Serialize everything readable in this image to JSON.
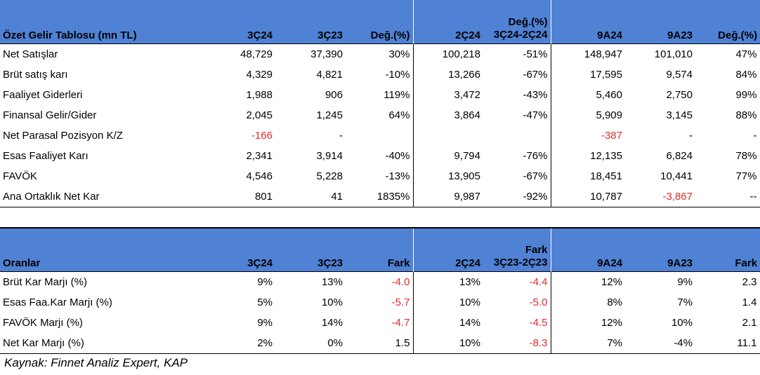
{
  "income": {
    "header": [
      "Özet Gelir Tablosu (mn TL)",
      "3Ç24",
      "3Ç23",
      "Değ.(%)",
      "2Ç24",
      "Değ.(%) 3Ç24-2Ç24",
      "9A24",
      "9A23",
      "Değ.(%)"
    ],
    "header_split": {
      "top": "Değ.(%)",
      "bottom": "3Ç24-2Ç24"
    },
    "rows": [
      {
        "label": "Net Satışlar",
        "cells": [
          "48,729",
          "37,390",
          "30%",
          "100,218",
          "-51%",
          "148,947",
          "101,010",
          "47%"
        ]
      },
      {
        "label": "Brüt satış karı",
        "cells": [
          "4,329",
          "4,821",
          "-10%",
          "13,266",
          "-67%",
          "17,595",
          "9,574",
          "84%"
        ]
      },
      {
        "label": "Faaliyet Giderleri",
        "cells": [
          "1,988",
          "906",
          "119%",
          "3,472",
          "-43%",
          "5,460",
          "2,750",
          "99%"
        ]
      },
      {
        "label": "Finansal Gelir/Gider",
        "cells": [
          "2,045",
          "1,245",
          "64%",
          "3,864",
          "-47%",
          "5,909",
          "3,145",
          "88%"
        ]
      },
      {
        "label": "Net Parasal Pozisyon K/Z",
        "cells": [
          "-166",
          "-",
          "",
          "",
          "",
          "-387",
          "-",
          "-"
        ]
      },
      {
        "label": "Esas Faaliyet Karı",
        "cells": [
          "2,341",
          "3,914",
          "-40%",
          "9,794",
          "-76%",
          "12,135",
          "6,824",
          "78%"
        ]
      },
      {
        "label": "FAVÖK",
        "cells": [
          "4,546",
          "5,228",
          "-13%",
          "13,905",
          "-67%",
          "18,451",
          "10,441",
          "77%"
        ]
      },
      {
        "label": "Ana Ortaklık Net Kar",
        "cells": [
          "801",
          "41",
          "1835%",
          "9,987",
          "-92%",
          "10,787",
          "-3,867",
          "--"
        ]
      }
    ],
    "red": [
      [
        4,
        0
      ],
      [
        4,
        5
      ],
      [
        7,
        6
      ]
    ]
  },
  "ratios": {
    "header": [
      "Oranlar",
      "3Ç24",
      "3Ç23",
      "Fark",
      "2Ç24",
      "Fark 3Ç23-2Ç23",
      "9A24",
      "9A23",
      "Fark"
    ],
    "header_split": {
      "top": "Fark",
      "bottom": "3Ç23-2Ç23"
    },
    "rows": [
      {
        "label": "Brüt Kar Marjı (%)",
        "cells": [
          "9%",
          "13%",
          "-4.0",
          "13%",
          "-4.4",
          "12%",
          "9%",
          "2.3"
        ]
      },
      {
        "label": "Esas Faa.Kar Marjı (%)",
        "cells": [
          "5%",
          "10%",
          "-5.7",
          "10%",
          "-5.0",
          "8%",
          "7%",
          "1.4"
        ]
      },
      {
        "label": "FAVÖK Marjı (%)",
        "cells": [
          "9%",
          "14%",
          "-4.7",
          "14%",
          "-4.5",
          "12%",
          "10%",
          "2.1"
        ]
      },
      {
        "label": "Net Kar Marjı (%)",
        "cells": [
          "2%",
          "0%",
          "1.5",
          "10%",
          "-8.3",
          "7%",
          "-4%",
          "11.1"
        ]
      }
    ],
    "red": [
      [
        0,
        2
      ],
      [
        0,
        4
      ],
      [
        1,
        2
      ],
      [
        1,
        4
      ],
      [
        2,
        2
      ],
      [
        2,
        4
      ],
      [
        3,
        4
      ]
    ]
  },
  "source": "Kaynak: Finnet Analiz Expert, KAP"
}
